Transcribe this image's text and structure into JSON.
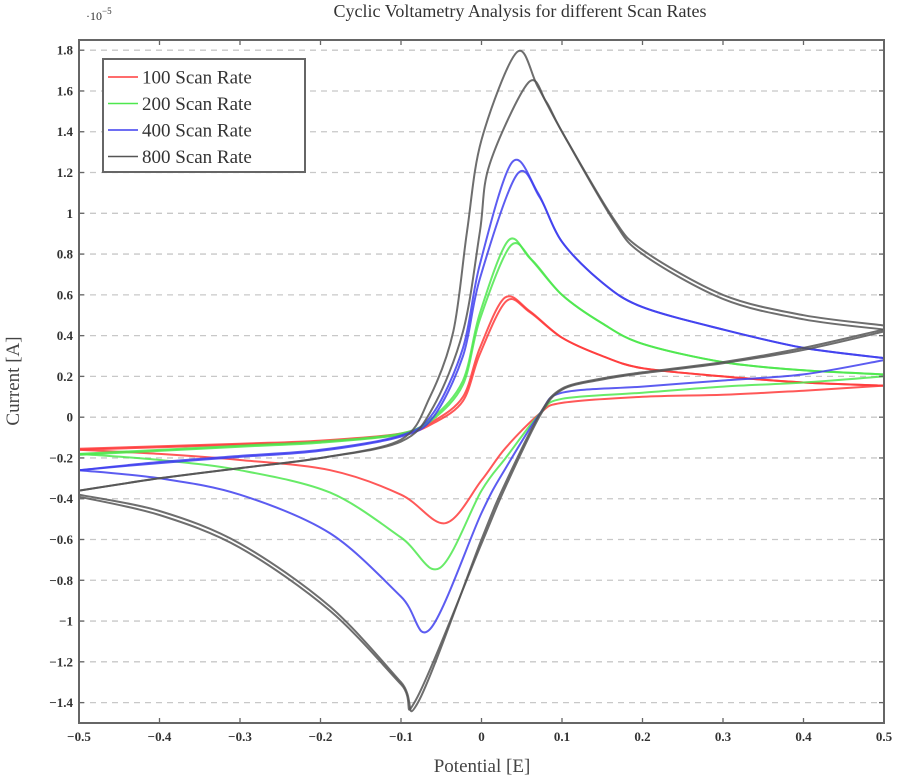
{
  "chart_data": {
    "type": "line",
    "title": "Cyclic Voltametry Analysis for different Scan Rates",
    "xlabel": "Potential [E]",
    "ylabel": "Current [A]",
    "y_multiplier": "·10",
    "y_multiplier_exponent": "−5",
    "xlim": [
      -0.5,
      0.5
    ],
    "ylim": [
      -1.5,
      1.85
    ],
    "x_ticks": [
      -0.5,
      -0.4,
      -0.3,
      -0.2,
      -0.1,
      0,
      0.1,
      0.2,
      0.3,
      0.4,
      0.5
    ],
    "x_tick_labels": [
      "−0.5",
      "−0.4",
      "−0.3",
      "−0.2",
      "−0.1",
      "0",
      "0.1",
      "0.2",
      "0.3",
      "0.4",
      "0.5"
    ],
    "y_ticks": [
      -1.4,
      -1.2,
      -1,
      -0.8,
      -0.6,
      -0.4,
      -0.2,
      0,
      0.2,
      0.4,
      0.6,
      0.8,
      1,
      1.2,
      1.4,
      1.6,
      1.8
    ],
    "y_tick_labels": [
      "−1.4",
      "−1.2",
      "−1",
      "−0.8",
      "−0.6",
      "−0.4",
      "−0.2",
      "0",
      "0.2",
      "0.4",
      "0.6",
      "0.8",
      "1",
      "1.2",
      "1.4",
      "1.6",
      "1.8"
    ],
    "grid": "horizontal dashed",
    "legend_position": "top-left",
    "series": [
      {
        "name": "100 Scan Rate",
        "color": "#ff3b3b",
        "branches": [
          {
            "x": [
              -0.5,
              -0.3,
              -0.2,
              -0.1,
              -0.06,
              -0.023,
              -0.002,
              0.029,
              0.06,
              0.1,
              0.15,
              0.2,
              0.3,
              0.4,
              0.5
            ],
            "y": [
              -0.155,
              -0.13,
              -0.115,
              -0.08,
              -0.02,
              0.1,
              0.34,
              0.586,
              0.52,
              0.39,
              0.3,
              0.24,
              0.2,
              0.17,
              0.155
            ]
          },
          {
            "x": [
              -0.5,
              -0.3,
              -0.2,
              -0.1,
              -0.06,
              -0.023,
              -0.002,
              0.031,
              0.06,
              0.1,
              0.15,
              0.2,
              0.3,
              0.4,
              0.5
            ],
            "y": [
              -0.16,
              -0.135,
              -0.12,
              -0.085,
              -0.03,
              0.08,
              0.31,
              0.57,
              0.515,
              0.39,
              0.3,
              0.24,
              0.2,
              0.17,
              0.155
            ]
          },
          {
            "x": [
              0.5,
              0.4,
              0.3,
              0.2,
              0.1,
              0.073,
              0.03,
              0,
              -0.045,
              -0.1,
              -0.188,
              -0.3,
              -0.4,
              -0.5
            ],
            "y": [
              0.155,
              0.13,
              0.11,
              0.1,
              0.07,
              0.02,
              -0.15,
              -0.31,
              -0.52,
              -0.38,
              -0.26,
              -0.21,
              -0.18,
              -0.16
            ]
          }
        ]
      },
      {
        "name": "200 Scan Rate",
        "color": "#4ee84e",
        "branches": [
          {
            "x": [
              -0.5,
              -0.3,
              -0.2,
              -0.1,
              -0.06,
              -0.023,
              -0.002,
              0.033,
              0.06,
              0.1,
              0.15,
              0.2,
              0.3,
              0.4,
              0.5
            ],
            "y": [
              -0.18,
              -0.14,
              -0.12,
              -0.08,
              0.0,
              0.18,
              0.51,
              0.865,
              0.78,
              0.6,
              0.46,
              0.36,
              0.27,
              0.23,
              0.21
            ]
          },
          {
            "x": [
              -0.5,
              -0.3,
              -0.2,
              -0.1,
              -0.06,
              -0.023,
              -0.002,
              0.036,
              0.063,
              0.1,
              0.15,
              0.2,
              0.3,
              0.4,
              0.5
            ],
            "y": [
              -0.185,
              -0.145,
              -0.125,
              -0.085,
              -0.01,
              0.16,
              0.48,
              0.84,
              0.77,
              0.6,
              0.46,
              0.36,
              0.27,
              0.23,
              0.21
            ]
          },
          {
            "x": [
              0.5,
              0.4,
              0.3,
              0.2,
              0.1,
              0.073,
              0.03,
              0,
              -0.052,
              -0.1,
              -0.188,
              -0.3,
              -0.4,
              -0.5
            ],
            "y": [
              0.2,
              0.17,
              0.15,
              0.12,
              0.09,
              0.02,
              -0.2,
              -0.36,
              -0.74,
              -0.59,
              -0.37,
              -0.26,
              -0.21,
              -0.18
            ]
          }
        ]
      },
      {
        "name": "400 Scan Rate",
        "color": "#3f3fef",
        "branches": [
          {
            "x": [
              -0.5,
              -0.4,
              -0.3,
              -0.2,
              -0.1,
              -0.06,
              -0.023,
              -0.002,
              0.038,
              0.07,
              0.1,
              0.15,
              0.2,
              0.3,
              0.4,
              0.5
            ],
            "y": [
              -0.26,
              -0.22,
              -0.19,
              -0.16,
              -0.09,
              0.02,
              0.34,
              0.75,
              1.25,
              1.1,
              0.86,
              0.66,
              0.54,
              0.43,
              0.34,
              0.29
            ]
          },
          {
            "x": [
              -0.5,
              -0.4,
              -0.3,
              -0.2,
              -0.1,
              -0.06,
              -0.023,
              -0.002,
              0.044,
              0.072,
              0.1,
              0.15,
              0.2,
              0.3,
              0.4,
              0.5
            ],
            "y": [
              -0.26,
              -0.225,
              -0.195,
              -0.165,
              -0.095,
              0.0,
              0.3,
              0.68,
              1.19,
              1.08,
              0.86,
              0.66,
              0.54,
              0.43,
              0.34,
              0.29
            ]
          },
          {
            "x": [
              0.5,
              0.4,
              0.3,
              0.2,
              0.1,
              0.073,
              0.03,
              0,
              -0.064,
              -0.1,
              -0.188,
              -0.3,
              -0.4,
              -0.5
            ],
            "y": [
              0.28,
              0.21,
              0.18,
              0.15,
              0.12,
              0.02,
              -0.25,
              -0.47,
              -1.04,
              -0.88,
              -0.57,
              -0.38,
              -0.3,
              -0.26
            ]
          }
        ]
      },
      {
        "name": "800 Scan Rate",
        "color": "#555555",
        "branches": [
          {
            "x": [
              -0.5,
              -0.4,
              -0.3,
              -0.2,
              -0.1,
              -0.064,
              -0.035,
              -0.018,
              0,
              0.044,
              0.07,
              0.1,
              0.163,
              0.2,
              0.3,
              0.4,
              0.5
            ],
            "y": [
              -0.36,
              -0.3,
              -0.25,
              -0.2,
              -0.11,
              0.1,
              0.42,
              0.91,
              1.36,
              1.79,
              1.62,
              1.4,
              0.98,
              0.82,
              0.6,
              0.5,
              0.45
            ]
          },
          {
            "x": [
              -0.5,
              -0.4,
              -0.3,
              -0.2,
              -0.1,
              -0.06,
              -0.023,
              -0.002,
              0.01,
              0.058,
              0.08,
              0.1,
              0.163,
              0.2,
              0.3,
              0.4,
              0.5
            ],
            "y": [
              -0.36,
              -0.3,
              -0.25,
              -0.2,
              -0.12,
              0.05,
              0.42,
              0.91,
              1.24,
              1.64,
              1.55,
              1.4,
              0.97,
              0.8,
              0.58,
              0.48,
              0.43
            ]
          },
          {
            "x": [
              0.5,
              0.4,
              0.3,
              0.2,
              0.15,
              0.1,
              0.073,
              0.03,
              0,
              -0.079,
              -0.1,
              -0.188,
              -0.3,
              -0.4,
              -0.5
            ],
            "y": [
              0.43,
              0.34,
              0.27,
              0.22,
              0.19,
              0.14,
              0.02,
              -0.32,
              -0.6,
              -1.4,
              -1.3,
              -0.93,
              -0.62,
              -0.46,
              -0.38
            ]
          },
          {
            "x": [
              0.5,
              0.4,
              0.3,
              0.2,
              0.15,
              0.1,
              0.073,
              0.03,
              0,
              -0.082,
              -0.1,
              -0.188,
              -0.3,
              -0.4,
              -0.5
            ],
            "y": [
              0.42,
              0.33,
              0.265,
              0.215,
              0.185,
              0.135,
              0.01,
              -0.34,
              -0.62,
              -1.39,
              -1.31,
              -0.95,
              -0.64,
              -0.48,
              -0.39
            ]
          }
        ]
      }
    ]
  }
}
